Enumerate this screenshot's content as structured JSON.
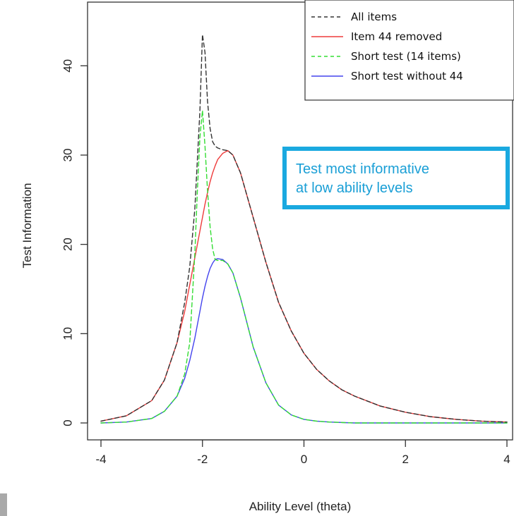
{
  "chart_data": {
    "type": "line",
    "xlabel": "Ability Level (theta)",
    "ylabel": "Test Information",
    "xlim": [
      -4,
      4
    ],
    "ylim": [
      0,
      45
    ],
    "x_ticks": [
      -4,
      -2,
      0,
      2,
      4
    ],
    "y_ticks": [
      0,
      10,
      20,
      30,
      40
    ],
    "legend_position": "top-right",
    "annotation": {
      "lines": [
        "Test most informative",
        "at low ability levels"
      ],
      "color": "#1a9fd6"
    },
    "x": [
      -4.0,
      -3.5,
      -3.0,
      -2.75,
      -2.5,
      -2.35,
      -2.25,
      -2.15,
      -2.1,
      -2.05,
      -2.0,
      -1.95,
      -1.9,
      -1.85,
      -1.8,
      -1.75,
      -1.7,
      -1.6,
      -1.5,
      -1.4,
      -1.25,
      -1.0,
      -0.75,
      -0.5,
      -0.25,
      0.0,
      0.25,
      0.5,
      0.75,
      1.0,
      1.5,
      2.0,
      2.5,
      3.0,
      3.5,
      4.0
    ],
    "series": [
      {
        "name": "All items",
        "color": "#333333",
        "dash": "6,4",
        "values": [
          0.2,
          0.8,
          2.5,
          4.8,
          9.0,
          13.5,
          17.5,
          24.0,
          29.5,
          35.0,
          43.5,
          41.5,
          36.0,
          33.0,
          31.5,
          31.0,
          30.8,
          30.6,
          30.5,
          30.0,
          28.0,
          23.0,
          18.0,
          13.5,
          10.3,
          7.8,
          6.0,
          4.7,
          3.7,
          3.0,
          1.9,
          1.2,
          0.7,
          0.4,
          0.2,
          0.1
        ]
      },
      {
        "name": "Item 44 removed",
        "color": "#ee3b3b",
        "dash": "",
        "values": [
          0.2,
          0.8,
          2.5,
          4.8,
          9.0,
          12.5,
          15.5,
          18.5,
          20.0,
          21.5,
          23.0,
          24.5,
          25.8,
          27.0,
          28.0,
          28.8,
          29.5,
          30.2,
          30.5,
          30.0,
          28.0,
          23.0,
          18.0,
          13.5,
          10.3,
          7.8,
          6.0,
          4.7,
          3.7,
          3.0,
          1.9,
          1.2,
          0.7,
          0.4,
          0.2,
          0.1
        ]
      },
      {
        "name": "Short test (14 items)",
        "color": "#33dd33",
        "dash": "6,4",
        "values": [
          0.0,
          0.1,
          0.5,
          1.3,
          3.0,
          5.5,
          9.0,
          19.0,
          26.0,
          32.0,
          35.0,
          31.0,
          26.0,
          22.0,
          19.5,
          18.3,
          18.2,
          18.2,
          17.8,
          16.8,
          14.0,
          8.5,
          4.5,
          2.0,
          0.9,
          0.4,
          0.2,
          0.1,
          0.05,
          0.0,
          0.0,
          0.0,
          0.0,
          0.0,
          0.0,
          0.0
        ]
      },
      {
        "name": "Short test without 44",
        "color": "#4444ee",
        "dash": "",
        "values": [
          0.0,
          0.1,
          0.5,
          1.3,
          3.0,
          5.0,
          7.0,
          9.5,
          11.0,
          12.5,
          14.0,
          15.3,
          16.4,
          17.3,
          17.9,
          18.3,
          18.4,
          18.3,
          17.8,
          16.8,
          14.0,
          8.5,
          4.5,
          2.0,
          0.9,
          0.4,
          0.2,
          0.1,
          0.05,
          0.0,
          0.0,
          0.0,
          0.0,
          0.0,
          0.0,
          0.0
        ]
      }
    ]
  }
}
